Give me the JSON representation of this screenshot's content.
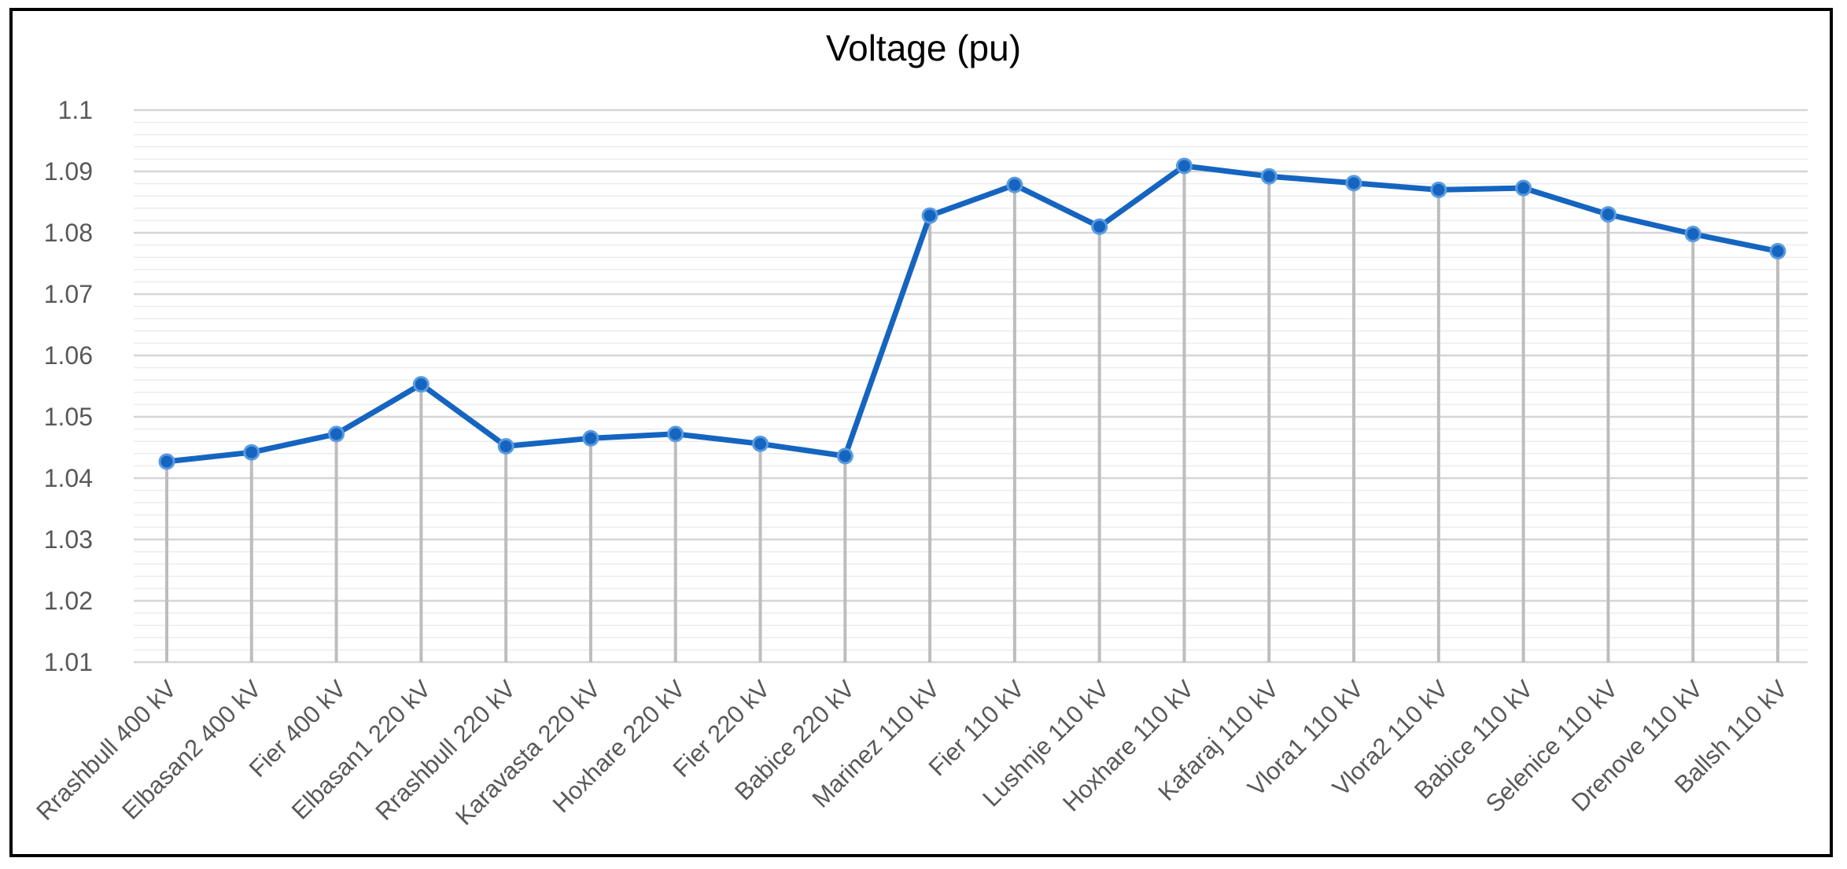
{
  "chart_data": {
    "type": "line",
    "title": "Voltage (pu)",
    "xlabel": "",
    "ylabel": "",
    "ylim": [
      1.01,
      1.1
    ],
    "yticks": [
      "1.01",
      "1.02",
      "1.03",
      "1.04",
      "1.05",
      "1.06",
      "1.07",
      "1.08",
      "1.09",
      "1.1"
    ],
    "grid": true,
    "legend": "none",
    "categories": [
      "Rrashbull 400 kV",
      "Elbasan2 400 kV",
      "Fier 400 kV",
      "Elbasan1 220 kV",
      "Rrashbull 220 kV",
      "Karavasta 220 kV",
      "Hoxhare 220 kV",
      "Fier 220 kV",
      "Babice 220 kV",
      "Marinez 110 kV",
      "Fier 110 kV",
      "Lushnje 110 kV",
      "Hoxhare 110 kV",
      "Kafaraj 110 kV",
      "Vlora1 110 kV",
      "Vlora2 110 kV",
      "Babice 110 kV",
      "Selenice 110 kV",
      "Drenove 110 kV",
      "Ballsh 110 kV"
    ],
    "series": [
      {
        "values": [
          1.0427,
          1.0442,
          1.0472,
          1.0553,
          1.0452,
          1.0465,
          1.0472,
          1.0456,
          1.0436,
          1.0828,
          1.0878,
          1.081,
          1.0909,
          1.0892,
          1.0881,
          1.087,
          1.0873,
          1.083,
          1.0798,
          1.077
        ],
        "color": "#1565c0"
      }
    ],
    "drop_line_color": "#bdbdbd"
  }
}
